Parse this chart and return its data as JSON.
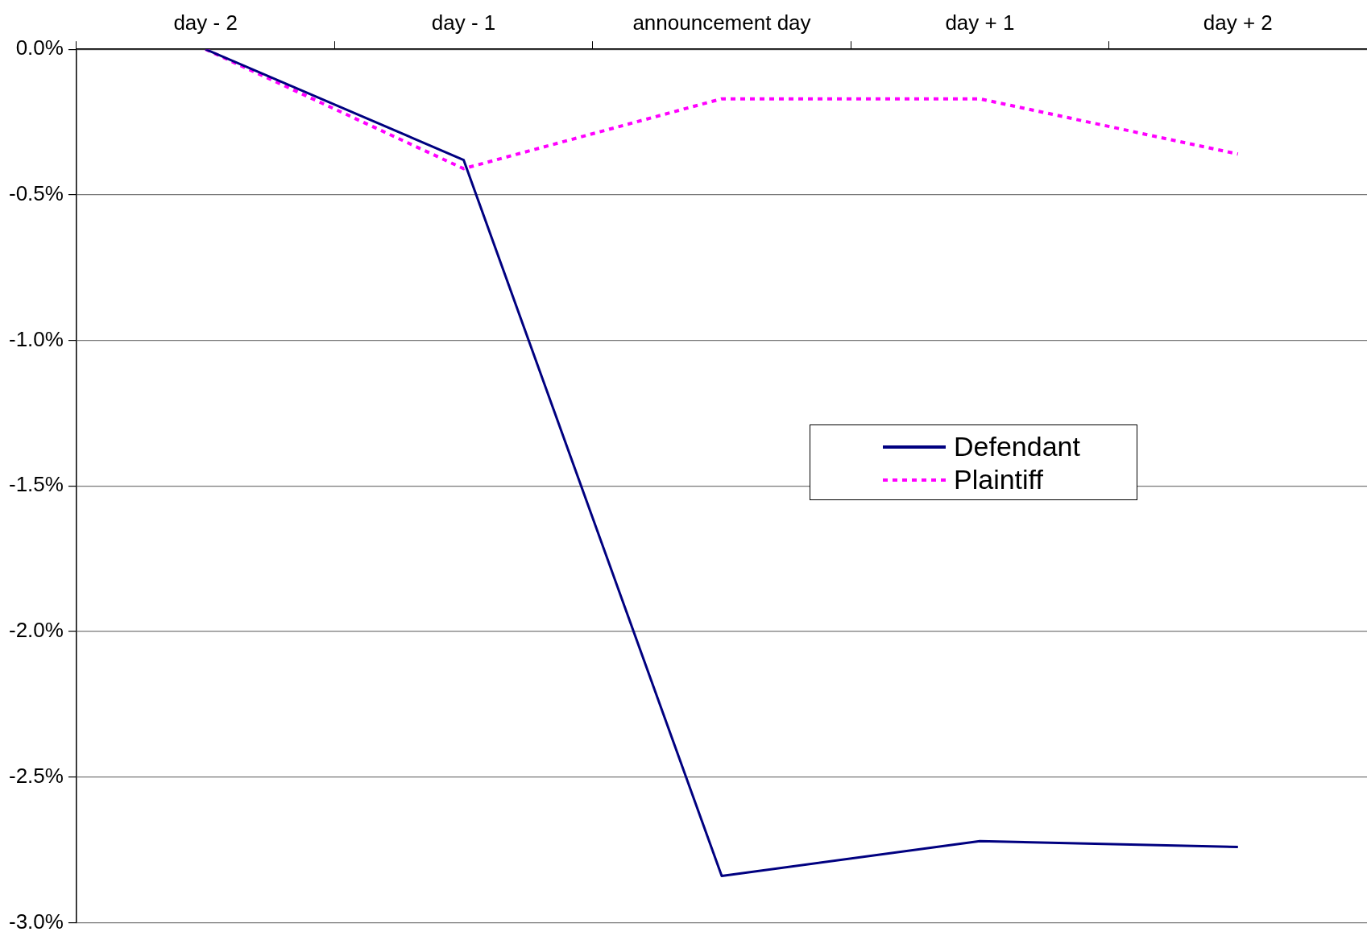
{
  "chart_data": {
    "type": "line",
    "categories": [
      "day - 2",
      "day - 1",
      "announcement day",
      "day + 1",
      "day + 2"
    ],
    "series": [
      {
        "name": "Defendant",
        "color": "#000080",
        "values": [
          0,
          -0.38,
          -2.84,
          -2.72,
          -2.74
        ],
        "line_style": "solid"
      },
      {
        "name": "Plaintiff",
        "color": "#ff00ff",
        "values": [
          0,
          -0.41,
          -0.17,
          -0.17,
          -0.36
        ],
        "line_style": "dotted"
      }
    ],
    "ylim": [
      -3,
      0
    ],
    "yticks": [
      {
        "value": 0,
        "label": "0.0%"
      },
      {
        "value": -0.5,
        "label": "-0.5%"
      },
      {
        "value": -1,
        "label": "-1.0%"
      },
      {
        "value": -1.5,
        "label": "-1.5%"
      },
      {
        "value": -2,
        "label": "-2.0%"
      },
      {
        "value": -2.5,
        "label": "-2.5%"
      },
      {
        "value": -3,
        "label": "-3.0%"
      }
    ],
    "grid": "y",
    "legend": "right",
    "marker": "none"
  }
}
